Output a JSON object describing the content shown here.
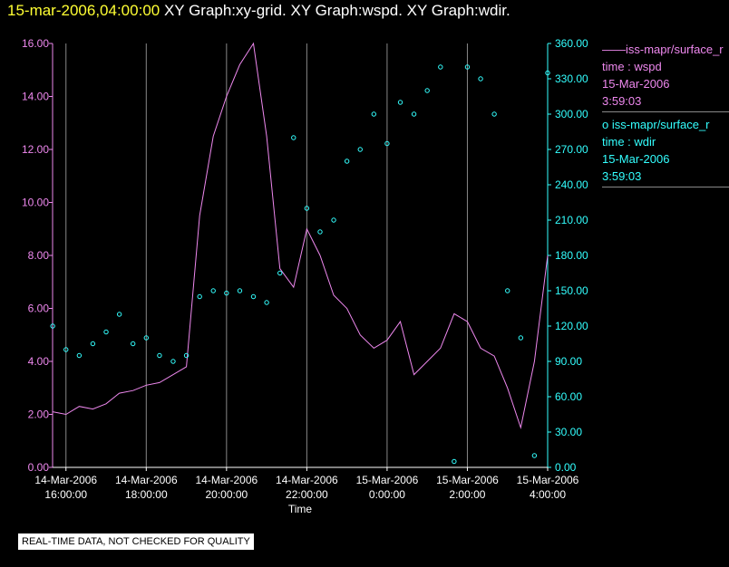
{
  "title": {
    "timestamp": "15-mar-2006,04:00:00",
    "rest": "XY Graph:xy-grid.  XY Graph:wspd.  XY Graph:wdir."
  },
  "legend": [
    {
      "symbol": "——",
      "source": "iss-mapr/surface_r",
      "label": "time : wspd",
      "date": "15-Mar-2006",
      "time": "3:59:03"
    },
    {
      "symbol": "o",
      "source": "iss-mapr/surface_r",
      "label": "time : wdir",
      "date": "15-Mar-2006",
      "time": "3:59:03"
    }
  ],
  "notice": "REAL-TIME DATA, NOT CHECKED FOR QUALITY",
  "colors": {
    "wspd": "#ee88ee",
    "wdir": "#33ffff",
    "grid": "#888888"
  },
  "chart_data": {
    "type": "line",
    "xlabel": "Time",
    "x_ticks": [
      {
        "date": "14-Mar-2006",
        "time": "16:00:00"
      },
      {
        "date": "14-Mar-2006",
        "time": "18:00:00"
      },
      {
        "date": "14-Mar-2006",
        "time": "20:00:00"
      },
      {
        "date": "14-Mar-2006",
        "time": "22:00:00"
      },
      {
        "date": "15-Mar-2006",
        "time": "0:00:00"
      },
      {
        "date": "15-Mar-2006",
        "time": "2:00:00"
      },
      {
        "date": "15-Mar-2006",
        "time": "4:00:00"
      }
    ],
    "xlim": [
      "14-Mar-2006 15:40:00",
      "15-Mar-2006 04:00:00"
    ],
    "y_left": {
      "ylim": [
        0,
        16
      ],
      "ticks": [
        "0.00",
        "2.00",
        "4.00",
        "6.00",
        "8.00",
        "10.00",
        "12.00",
        "14.00",
        "16.00"
      ]
    },
    "y_right": {
      "ylim": [
        0,
        360
      ],
      "ticks": [
        "0.00",
        "30.00",
        "60.00",
        "90.00",
        "120.00",
        "150.00",
        "180.00",
        "210.00",
        "240.00",
        "270.00",
        "300.00",
        "330.00",
        "360.00"
      ]
    },
    "grid": "vertical",
    "series": [
      {
        "name": "time : wspd",
        "axis": "left",
        "style": "line",
        "hours": [
          -0.33,
          0,
          0.33,
          0.67,
          1,
          1.33,
          1.67,
          2,
          2.33,
          2.67,
          3,
          3.33,
          3.67,
          4,
          4.33,
          4.67,
          5,
          5.33,
          5.67,
          6,
          6.33,
          6.67,
          7,
          7.33,
          7.67,
          8,
          8.33,
          8.67,
          9,
          9.33,
          9.67,
          10,
          10.33,
          10.67,
          11,
          11.33,
          11.67,
          12
        ],
        "values": [
          2.1,
          2.0,
          2.3,
          2.2,
          2.4,
          2.8,
          2.9,
          3.1,
          3.2,
          3.5,
          3.8,
          9.5,
          12.5,
          14.0,
          15.2,
          16.0,
          12.5,
          7.5,
          6.8,
          9.0,
          8.0,
          6.5,
          6.0,
          5.0,
          4.5,
          4.8,
          5.5,
          3.5,
          4.0,
          4.5,
          5.8,
          5.5,
          4.5,
          4.2,
          3.0,
          1.5,
          4.0,
          8.0
        ]
      },
      {
        "name": "time : wdir",
        "axis": "right",
        "style": "points",
        "hours": [
          -0.33,
          0,
          0.33,
          0.67,
          1,
          1.33,
          1.67,
          2,
          2.33,
          2.67,
          3,
          3.33,
          3.67,
          4,
          4.33,
          4.67,
          5,
          5.33,
          5.67,
          6,
          6.33,
          6.67,
          7,
          7.33,
          7.67,
          8,
          8.33,
          8.67,
          9,
          9.33,
          9.67,
          10,
          10.33,
          10.67,
          11,
          11.33,
          11.67,
          12
        ],
        "values": [
          120,
          100,
          95,
          105,
          115,
          130,
          105,
          110,
          95,
          90,
          95,
          145,
          150,
          148,
          150,
          145,
          140,
          165,
          280,
          220,
          200,
          210,
          260,
          270,
          300,
          275,
          310,
          300,
          320,
          340,
          5,
          340,
          330,
          300,
          150,
          110,
          10,
          335
        ]
      }
    ]
  }
}
